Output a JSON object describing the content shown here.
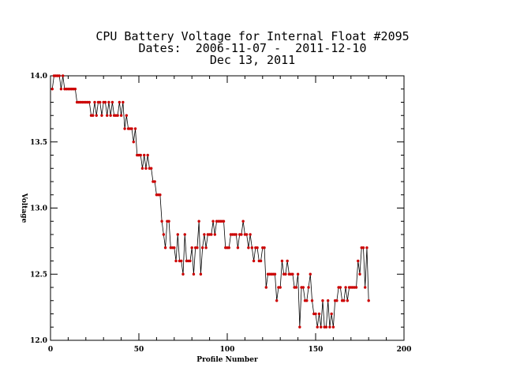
{
  "title": {
    "line1": "CPU Battery Voltage for Internal Float #2095",
    "line2": "Dates:  2006-11-07 -  2011-12-10",
    "line3": "Dec 13, 2011"
  },
  "colors": {
    "line": "#000000",
    "marker": "#cc0000",
    "axis": "#000000"
  },
  "chart_data": {
    "type": "line",
    "xlabel": "Profile Number",
    "ylabel": "Voltage",
    "xlim": [
      0,
      200
    ],
    "ylim": [
      12.0,
      14.0
    ],
    "x_ticks": [
      0,
      50,
      100,
      150,
      200
    ],
    "y_ticks": [
      12.0,
      12.5,
      13.0,
      13.5,
      14.0
    ],
    "x_tick_labels": [
      "0",
      "50",
      "100",
      "150",
      "200"
    ],
    "y_tick_labels": [
      "12.0",
      "12.5",
      "13.0",
      "13.5",
      "14.0"
    ],
    "grid": false,
    "series": [
      {
        "x_start": 1,
        "values": [
          13.9,
          14.0,
          14.0,
          14.0,
          14.0,
          13.9,
          14.0,
          13.9,
          13.9,
          13.9,
          13.9,
          13.9,
          13.9,
          13.9,
          13.8,
          13.8,
          13.8,
          13.8,
          13.8,
          13.8,
          13.8,
          13.8,
          13.7,
          13.7,
          13.8,
          13.7,
          13.8,
          13.8,
          13.7,
          13.8,
          13.8,
          13.7,
          13.8,
          13.7,
          13.8,
          13.7,
          13.7,
          13.7,
          13.8,
          13.7,
          13.8,
          13.6,
          13.7,
          13.6,
          13.6,
          13.6,
          13.5,
          13.6,
          13.4,
          13.4,
          13.4,
          13.3,
          13.4,
          13.3,
          13.4,
          13.3,
          13.3,
          13.2,
          13.2,
          13.1,
          13.1,
          13.1,
          12.9,
          12.8,
          12.7,
          12.9,
          12.9,
          12.7,
          12.7,
          12.7,
          12.6,
          12.8,
          12.6,
          12.6,
          12.5,
          12.8,
          12.6,
          12.6,
          12.6,
          12.7,
          12.5,
          12.7,
          12.7,
          12.9,
          12.5,
          12.7,
          12.8,
          12.7,
          12.8,
          12.8,
          12.8,
          12.9,
          12.8,
          12.9,
          12.9,
          12.9,
          12.9,
          12.9,
          12.7,
          12.7,
          12.7,
          12.8,
          12.8,
          12.8,
          12.8,
          12.7,
          12.8,
          12.8,
          12.9,
          12.8,
          12.8,
          12.7,
          12.8,
          12.7,
          12.6,
          12.7,
          12.7,
          12.6,
          12.6,
          12.7,
          12.7,
          12.4,
          12.5,
          12.5,
          12.5,
          12.5,
          12.5,
          12.3,
          12.4,
          12.4,
          12.6,
          12.5,
          12.5,
          12.6,
          12.5,
          12.5,
          12.5,
          12.4,
          12.4,
          12.5,
          12.1,
          12.4,
          12.4,
          12.3,
          12.3,
          12.4,
          12.5,
          12.3,
          12.2,
          12.2,
          12.1,
          12.2,
          12.1,
          12.3,
          12.1,
          12.1,
          12.3,
          12.1,
          12.2,
          12.1,
          12.3,
          12.3,
          12.4,
          12.4,
          12.3,
          12.3,
          12.4,
          12.3,
          12.4,
          12.4,
          12.4,
          12.4,
          12.4,
          12.6,
          12.5,
          12.7,
          12.7,
          12.4,
          12.7,
          12.3
        ]
      }
    ]
  }
}
